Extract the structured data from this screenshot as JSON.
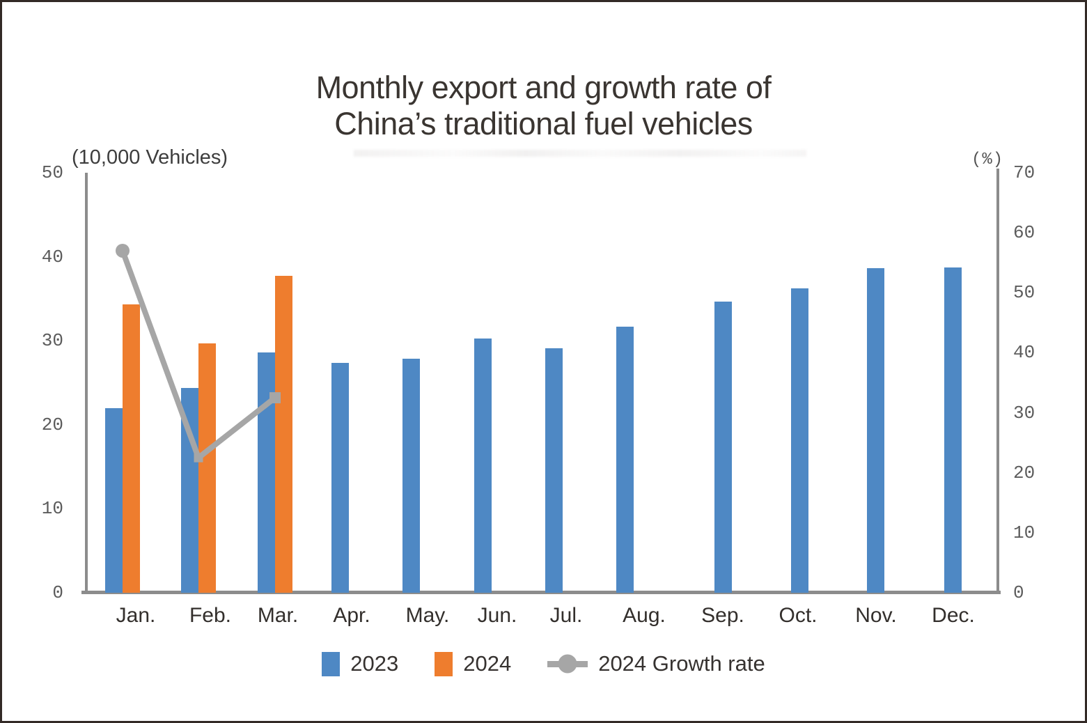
{
  "title_lines": [
    "Monthly export and growth rate of",
    "China’s traditional fuel vehicles"
  ],
  "colors": {
    "bar_2023": "#4E88C4",
    "bar_2024": "#EE7D2E",
    "growth_line": "#A6A6A6",
    "axis_line": "#8C8C8C"
  },
  "legend": {
    "items": [
      {
        "label": "2023",
        "marker": "square",
        "color": "#4E88C4"
      },
      {
        "label": "2024",
        "marker": "square",
        "color": "#EE7D2E"
      },
      {
        "label": "2024 Growth rate",
        "marker": "line-circle",
        "color": "#A6A6A6"
      }
    ]
  },
  "chart_data": {
    "type": "bar",
    "title": "Monthly export and growth rate of China’s traditional fuel vehicles",
    "categories": [
      "Jan.",
      "Feb.",
      "Mar.",
      "Apr.",
      "May.",
      "Jun.",
      "Jul.",
      "Aug.",
      "Sep.",
      "Oct.",
      "Nov.",
      "Dec."
    ],
    "series": [
      {
        "name": "2023",
        "type": "bar",
        "axis": "left",
        "color": "#4E88C4",
        "values": [
          22.0,
          24.4,
          28.6,
          27.4,
          27.9,
          30.3,
          29.1,
          31.7,
          34.7,
          36.2,
          38.6,
          38.7
        ]
      },
      {
        "name": "2024",
        "type": "bar",
        "axis": "left",
        "color": "#EE7D2E",
        "values": [
          34.3,
          29.7,
          37.7,
          null,
          null,
          null,
          null,
          null,
          null,
          null,
          null,
          null
        ]
      },
      {
        "name": "2024 Growth rate",
        "type": "line",
        "axis": "right",
        "color": "#A6A6A6",
        "values": [
          57,
          22.5,
          32.5,
          null,
          null,
          null,
          null,
          null,
          null,
          null,
          null,
          null
        ]
      }
    ],
    "left_axis": {
      "unit": "(10,000 Vehicles)",
      "min": 0,
      "max": 50,
      "ticks": [
        0,
        10,
        20,
        30,
        40,
        50
      ]
    },
    "right_axis": {
      "unit": "(%)",
      "min": 0,
      "max": 70,
      "ticks": [
        0,
        10,
        20,
        30,
        40,
        50,
        60,
        70
      ]
    },
    "legend_position": "bottom",
    "grid": false
  }
}
